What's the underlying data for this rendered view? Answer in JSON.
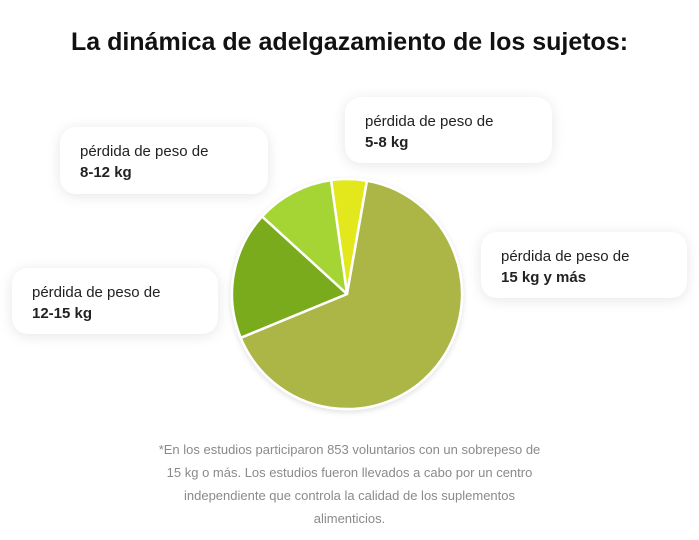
{
  "title": "La dinámica de adelgazamiento de los sujetos:",
  "chart_data": {
    "type": "pie",
    "title": "La dinámica de adelgazamiento de los sujetos:",
    "categories": [
      "5-8 kg",
      "15 kg y más",
      "12-15 kg",
      "8-12 kg"
    ],
    "values": [
      5,
      66,
      18,
      11
    ],
    "colors": [
      "#e3e81a",
      "#abb646",
      "#7aab1e",
      "#a4d535"
    ],
    "labels": [
      {
        "line1": "pérdida de peso de",
        "line2": "5-8 kg"
      },
      {
        "line1": "pérdida de peso de",
        "line2": "15 kg y más"
      },
      {
        "line1": "pérdida de peso de",
        "line2": "12-15 kg"
      },
      {
        "line1": "pérdida de peso de",
        "line2": "8-12 kg"
      }
    ]
  },
  "footnote": [
    "*En los estudios participaron 853 voluntarios con un sobrepeso de",
    "15 kg o más. Los estudios fueron llevados a cabo por un centro",
    "independiente que controla la calidad de los suplementos",
    "alimenticios."
  ]
}
